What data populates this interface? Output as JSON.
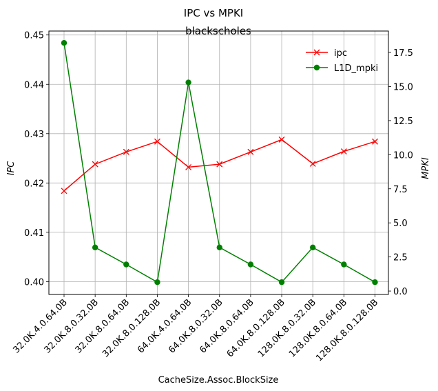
{
  "chart_data": {
    "type": "line",
    "suptitle": "IPC vs MPKI",
    "title": "blackscholes",
    "xlabel": "CacheSize.Assoc.BlockSize",
    "ylabel_left": "IPC",
    "ylabel_right": "MPKI",
    "categories": [
      "32.0K.4.0.64.0B",
      "32.0K.8.0.32.0B",
      "32.0K.8.0.64.0B",
      "32.0K.8.0.128.0B",
      "64.0K.4.0.64.0B",
      "64.0K.8.0.32.0B",
      "64.0K.8.0.64.0B",
      "64.0K.8.0.128.0B",
      "128.0K.8.0.32.0B",
      "128.0K.8.0.64.0B",
      "128.0K.8.0.128.0B"
    ],
    "left_axis": {
      "ylim": [
        0.3974,
        0.4508
      ],
      "ticks": [
        0.4,
        0.41,
        0.42,
        0.43,
        0.44,
        0.45
      ],
      "tick_labels": [
        "0.40",
        "0.41",
        "0.42",
        "0.43",
        "0.44",
        "0.45"
      ]
    },
    "right_axis": {
      "ylim": [
        -0.25,
        19.07
      ],
      "ticks": [
        0.0,
        2.5,
        5.0,
        7.5,
        10.0,
        12.5,
        15.0,
        17.5
      ],
      "tick_labels": [
        "0.0",
        "2.5",
        "5.0",
        "7.5",
        "10.0",
        "12.5",
        "15.0",
        "17.5"
      ]
    },
    "series": [
      {
        "name": "ipc",
        "axis": "left",
        "color": "#ff0000",
        "marker": "x",
        "values": [
          0.4184,
          0.4238,
          0.4263,
          0.4284,
          0.4232,
          0.4238,
          0.4263,
          0.4288,
          0.4239,
          0.4264,
          0.4284
        ]
      },
      {
        "name": "L1D_mpki",
        "axis": "right",
        "color": "#008000",
        "marker": "o",
        "values": [
          18.2,
          3.2,
          1.95,
          0.65,
          15.3,
          3.2,
          1.95,
          0.65,
          3.2,
          1.95,
          0.65
        ]
      }
    ],
    "grid": true,
    "legend": {
      "position": "top-right",
      "entries": [
        "ipc",
        "L1D_mpki"
      ]
    }
  }
}
